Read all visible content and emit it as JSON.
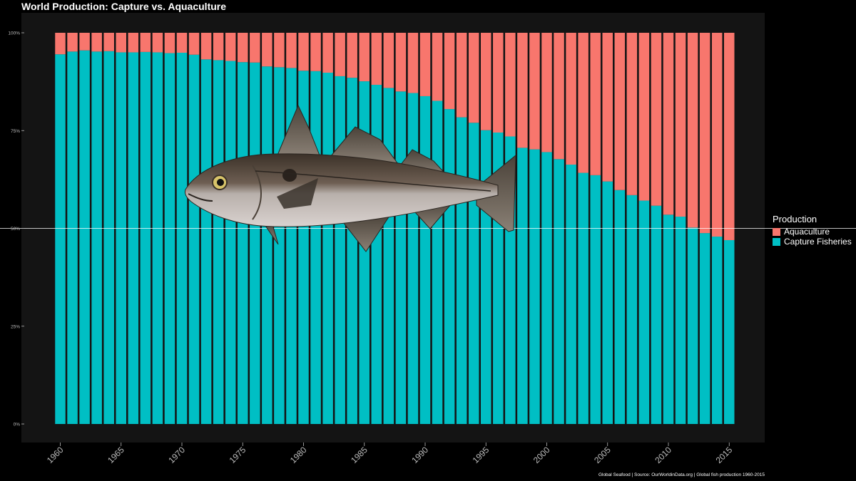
{
  "chart_data": {
    "type": "bar",
    "stacked": true,
    "title": "World Production: Capture vs. Aquaculture",
    "caption": "Global Seafood | Source: OurWorldinData.org | Global fish production 1960-2015",
    "legend": {
      "title": "Production",
      "position": "right",
      "entries": [
        "Aquaculture",
        "Capture Fisheries"
      ]
    },
    "colors": {
      "Aquaculture": "#F8766D",
      "Capture Fisheries": "#00BFC4",
      "panel": "#141414",
      "background": "#000000",
      "reference_line": "#ffffff"
    },
    "reference_line_y": 0.5,
    "ylim": [
      0,
      1
    ],
    "y_ticks": [
      0,
      0.25,
      0.5,
      0.75,
      1.0
    ],
    "y_tick_labels": [
      "0%",
      "25%",
      "50%",
      "75%",
      "100%"
    ],
    "x_ticks": [
      1960,
      1965,
      1970,
      1975,
      1980,
      1985,
      1990,
      1995,
      2000,
      2005,
      2010,
      2015
    ],
    "x_tick_labels": [
      "1960",
      "1965",
      "1970",
      "1975",
      "1980",
      "1985",
      "1990",
      "1995",
      "2000",
      "2005",
      "2010",
      "2015"
    ],
    "x": [
      1960,
      1961,
      1962,
      1963,
      1964,
      1965,
      1966,
      1967,
      1968,
      1969,
      1970,
      1971,
      1972,
      1973,
      1974,
      1975,
      1976,
      1977,
      1978,
      1979,
      1980,
      1981,
      1982,
      1983,
      1984,
      1985,
      1986,
      1987,
      1988,
      1989,
      1990,
      1991,
      1992,
      1993,
      1994,
      1995,
      1996,
      1997,
      1998,
      1999,
      2000,
      2001,
      2002,
      2003,
      2004,
      2005,
      2006,
      2007,
      2008,
      2009,
      2010,
      2011,
      2012,
      2013,
      2014,
      2015
    ],
    "series": [
      {
        "name": "Capture Fisheries",
        "values": [
          0.945,
          0.952,
          0.955,
          0.952,
          0.953,
          0.95,
          0.95,
          0.951,
          0.95,
          0.948,
          0.949,
          0.944,
          0.932,
          0.93,
          0.928,
          0.925,
          0.924,
          0.914,
          0.912,
          0.91,
          0.903,
          0.902,
          0.898,
          0.889,
          0.885,
          0.876,
          0.867,
          0.859,
          0.85,
          0.846,
          0.838,
          0.826,
          0.805,
          0.784,
          0.77,
          0.751,
          0.745,
          0.735,
          0.706,
          0.702,
          0.695,
          0.677,
          0.663,
          0.642,
          0.636,
          0.62,
          0.598,
          0.585,
          0.571,
          0.558,
          0.535,
          0.53,
          0.502,
          0.488,
          0.479,
          0.47
        ]
      },
      {
        "name": "Aquaculture",
        "values": [
          0.055,
          0.048,
          0.045,
          0.048,
          0.047,
          0.05,
          0.05,
          0.049,
          0.05,
          0.052,
          0.051,
          0.056,
          0.068,
          0.07,
          0.072,
          0.075,
          0.076,
          0.086,
          0.088,
          0.09,
          0.097,
          0.098,
          0.102,
          0.111,
          0.115,
          0.124,
          0.133,
          0.141,
          0.15,
          0.154,
          0.162,
          0.174,
          0.195,
          0.216,
          0.23,
          0.249,
          0.255,
          0.265,
          0.294,
          0.298,
          0.305,
          0.323,
          0.337,
          0.358,
          0.364,
          0.38,
          0.402,
          0.415,
          0.429,
          0.442,
          0.465,
          0.47,
          0.498,
          0.512,
          0.521,
          0.53
        ]
      }
    ]
  },
  "image": {
    "fish_icon": "haddock-fish-icon"
  }
}
